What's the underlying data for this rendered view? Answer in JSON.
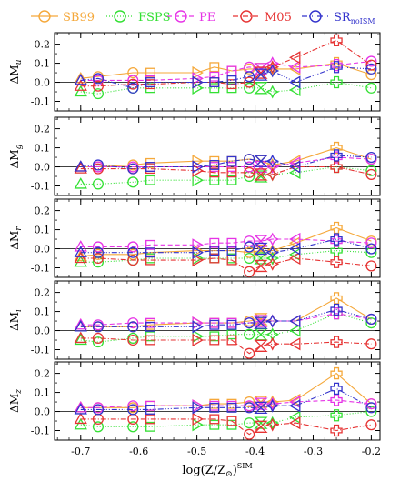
{
  "chart_data": {
    "type": "line",
    "x": [
      -0.7,
      -0.67,
      -0.61,
      -0.58,
      -0.5,
      -0.47,
      -0.44,
      -0.41,
      -0.39,
      -0.37,
      -0.33,
      -0.26,
      -0.2
    ],
    "xlabel": "log(Z/Z⊙)^SIM",
    "xticks": [
      -0.7,
      -0.6,
      -0.5,
      -0.4,
      -0.3,
      -0.2
    ],
    "xlim": [
      -0.745,
      -0.185
    ],
    "yticks": [
      -0.1,
      0.0,
      0.1,
      0.2
    ],
    "ylim": [
      -0.15,
      0.26
    ],
    "grid": false,
    "legend_position": "top",
    "legend": [
      {
        "name": "SB99",
        "sub": "",
        "color": "#F5A83A",
        "dash": "",
        "marker": "circle"
      },
      {
        "name": "FSPS",
        "sub": "",
        "color": "#33E033",
        "dash": "1,2",
        "marker": "circle"
      },
      {
        "name": "PE",
        "sub": "",
        "color": "#E633E6",
        "dash": "5,3",
        "marker": "circle"
      },
      {
        "name": "M05",
        "sub": "",
        "color": "#E63333",
        "dash": "6,2,1,2",
        "marker": "circle"
      },
      {
        "name": "SR",
        "sub": "noISM",
        "color": "#3333CC",
        "dash": "6,2,1,2,1,2,1,2",
        "marker": "circle"
      }
    ],
    "panels": [
      {
        "ylabel": "ΔM",
        "ylabel_sub": "u",
        "series": [
          {
            "name": "SB99",
            "values": [
              0.02,
              0.03,
              0.05,
              0.05,
              0.05,
              0.08,
              0.06,
              0.07,
              0.07,
              0.07,
              0.07,
              0.1,
              0.04
            ]
          },
          {
            "name": "FSPS",
            "values": [
              -0.05,
              -0.06,
              -0.03,
              -0.03,
              -0.03,
              -0.03,
              -0.03,
              -0.03,
              -0.03,
              -0.05,
              -0.04,
              0.0,
              -0.03
            ]
          },
          {
            "name": "PE",
            "values": [
              0.01,
              0.01,
              0.01,
              0.01,
              0.02,
              0.03,
              0.06,
              0.08,
              0.07,
              0.1,
              0.08,
              0.09,
              0.11
            ]
          },
          {
            "name": "M05",
            "values": [
              -0.02,
              -0.02,
              -0.01,
              -0.01,
              0.0,
              0.0,
              -0.01,
              0.0,
              0.05,
              0.08,
              0.13,
              0.22,
              0.09
            ]
          },
          {
            "name": "SR",
            "values": [
              0.01,
              0.02,
              -0.03,
              0.0,
              0.0,
              0.0,
              0.01,
              0.03,
              0.04,
              0.06,
              0.0,
              0.08,
              0.07
            ]
          }
        ]
      },
      {
        "ylabel": "ΔM",
        "ylabel_sub": "g",
        "series": [
          {
            "name": "SB99",
            "values": [
              0.0,
              0.0,
              0.01,
              0.02,
              0.03,
              0.03,
              0.03,
              0.04,
              0.03,
              0.01,
              0.03,
              0.1,
              0.04
            ]
          },
          {
            "name": "FSPS",
            "values": [
              -0.09,
              -0.09,
              -0.08,
              -0.07,
              -0.07,
              -0.07,
              -0.07,
              -0.05,
              -0.05,
              -0.04,
              -0.03,
              0.0,
              -0.02
            ]
          },
          {
            "name": "PE",
            "values": [
              0.0,
              0.0,
              0.0,
              0.0,
              0.0,
              0.0,
              0.0,
              0.0,
              0.0,
              0.0,
              0.02,
              0.05,
              0.04
            ]
          },
          {
            "name": "M05",
            "values": [
              -0.01,
              -0.01,
              -0.01,
              -0.01,
              -0.02,
              -0.03,
              -0.03,
              -0.03,
              -0.04,
              -0.04,
              0.0,
              0.0,
              -0.04
            ]
          },
          {
            "name": "SR",
            "values": [
              0.0,
              0.01,
              -0.01,
              0.0,
              0.0,
              0.01,
              0.03,
              0.04,
              0.03,
              0.03,
              0.0,
              0.06,
              0.05
            ]
          }
        ]
      },
      {
        "ylabel": "ΔM",
        "ylabel_sub": "r",
        "series": [
          {
            "name": "SB99",
            "values": [
              -0.04,
              -0.03,
              -0.03,
              -0.02,
              -0.01,
              -0.01,
              -0.01,
              -0.02,
              -0.01,
              -0.01,
              0.03,
              0.11,
              0.04
            ]
          },
          {
            "name": "FSPS",
            "values": [
              -0.07,
              -0.07,
              -0.06,
              -0.05,
              -0.05,
              -0.05,
              -0.05,
              -0.05,
              -0.05,
              -0.05,
              -0.03,
              -0.01,
              -0.02
            ]
          },
          {
            "name": "PE",
            "values": [
              0.01,
              0.01,
              0.01,
              0.02,
              0.02,
              0.03,
              0.03,
              0.04,
              0.04,
              0.05,
              0.05,
              0.04,
              0.03
            ]
          },
          {
            "name": "M05",
            "values": [
              -0.05,
              -0.05,
              -0.06,
              -0.06,
              -0.06,
              -0.05,
              -0.06,
              -0.12,
              -0.09,
              -0.08,
              -0.05,
              -0.07,
              -0.09
            ]
          },
          {
            "name": "SR",
            "values": [
              -0.02,
              -0.02,
              -0.02,
              -0.02,
              -0.02,
              -0.01,
              -0.01,
              0.01,
              0.0,
              -0.02,
              0.0,
              0.05,
              0.0
            ]
          }
        ]
      },
      {
        "ylabel": "ΔM",
        "ylabel_sub": "i",
        "series": [
          {
            "name": "SB99",
            "values": [
              0.02,
              0.02,
              0.02,
              0.03,
              0.04,
              0.04,
              0.04,
              0.05,
              0.06,
              0.05,
              0.05,
              0.17,
              0.06
            ]
          },
          {
            "name": "FSPS",
            "values": [
              -0.05,
              -0.06,
              -0.04,
              -0.03,
              -0.03,
              -0.03,
              -0.02,
              -0.02,
              -0.02,
              -0.02,
              0.0,
              0.09,
              0.04
            ]
          },
          {
            "name": "PE",
            "values": [
              0.03,
              0.03,
              0.04,
              0.04,
              0.04,
              0.04,
              0.04,
              0.04,
              0.05,
              0.05,
              0.05,
              0.09,
              0.06
            ]
          },
          {
            "name": "M05",
            "values": [
              -0.04,
              -0.04,
              -0.05,
              -0.05,
              -0.05,
              -0.05,
              -0.05,
              -0.12,
              -0.08,
              -0.07,
              -0.07,
              -0.06,
              -0.07
            ]
          },
          {
            "name": "SR",
            "values": [
              0.02,
              0.02,
              0.02,
              0.02,
              0.02,
              0.03,
              0.03,
              0.04,
              0.04,
              0.05,
              0.05,
              0.11,
              0.06
            ]
          }
        ]
      },
      {
        "ylabel": "ΔM",
        "ylabel_sub": "z",
        "series": [
          {
            "name": "SB99",
            "values": [
              0.02,
              0.02,
              0.02,
              0.03,
              0.03,
              0.04,
              0.04,
              0.05,
              0.05,
              0.05,
              0.06,
              0.2,
              0.04
            ]
          },
          {
            "name": "FSPS",
            "values": [
              -0.07,
              -0.08,
              -0.08,
              -0.08,
              -0.07,
              -0.07,
              -0.07,
              -0.06,
              -0.06,
              -0.06,
              -0.03,
              -0.02,
              0.0
            ]
          },
          {
            "name": "PE",
            "values": [
              0.02,
              0.02,
              0.03,
              0.03,
              0.03,
              0.03,
              0.03,
              0.03,
              0.04,
              0.04,
              0.05,
              0.06,
              0.04
            ]
          },
          {
            "name": "M05",
            "values": [
              -0.04,
              -0.04,
              -0.04,
              -0.04,
              -0.04,
              -0.04,
              -0.05,
              -0.12,
              -0.08,
              -0.07,
              -0.06,
              -0.1,
              -0.07
            ]
          },
          {
            "name": "SR",
            "values": [
              0.01,
              0.01,
              0.01,
              0.01,
              0.02,
              0.02,
              0.02,
              0.02,
              0.02,
              0.03,
              0.03,
              0.12,
              0.02
            ]
          }
        ]
      }
    ]
  }
}
